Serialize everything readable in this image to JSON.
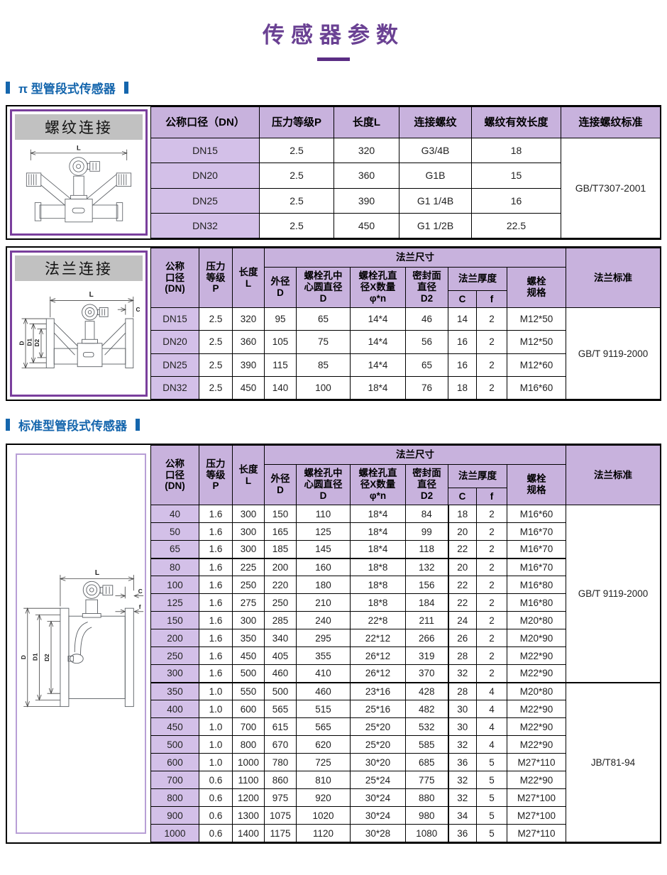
{
  "title": "传感器参数",
  "sections": {
    "pi_type": {
      "heading": "π 型管段式传感器",
      "threaded": {
        "panel_title": "螺纹连接",
        "headers": [
          "公称口径（DN）",
          "压力等级P",
          "长度L",
          "连接螺纹",
          "螺纹有效长度",
          "连接螺纹标准"
        ],
        "rows": [
          [
            "DN15",
            "2.5",
            "320",
            "G3/4B",
            "18"
          ],
          [
            "DN20",
            "2.5",
            "360",
            "G1B",
            "15"
          ],
          [
            "DN25",
            "2.5",
            "390",
            "G1 1/4B",
            "16"
          ],
          [
            "DN32",
            "2.5",
            "450",
            "G1 1/2B",
            "22.5"
          ]
        ],
        "standards": [
          {
            "label": "GB/T7307-2001",
            "span": 4
          }
        ]
      },
      "flanged": {
        "panel_title": "法兰连接",
        "rows": [
          [
            "DN15",
            "2.5",
            "320",
            "95",
            "65",
            "14*4",
            "46",
            "14",
            "2",
            "M12*50"
          ],
          [
            "DN20",
            "2.5",
            "360",
            "105",
            "75",
            "14*4",
            "56",
            "16",
            "2",
            "M12*50"
          ],
          [
            "DN25",
            "2.5",
            "390",
            "115",
            "85",
            "14*4",
            "65",
            "16",
            "2",
            "M12*60"
          ],
          [
            "DN32",
            "2.5",
            "450",
            "140",
            "100",
            "18*4",
            "76",
            "18",
            "2",
            "M16*60"
          ]
        ],
        "standards": [
          {
            "label": "GB/T 9119-2000",
            "span": 4
          }
        ]
      }
    },
    "standard_type": {
      "heading": "标准型管段式传感器",
      "table": {
        "rows": [
          [
            "40",
            "1.6",
            "300",
            "150",
            "110",
            "18*4",
            "84",
            "18",
            "2",
            "M16*60"
          ],
          [
            "50",
            "1.6",
            "300",
            "165",
            "125",
            "18*4",
            "99",
            "20",
            "2",
            "M16*70"
          ],
          [
            "65",
            "1.6",
            "300",
            "185",
            "145",
            "18*4",
            "118",
            "22",
            "2",
            "M16*70"
          ],
          [
            "80",
            "1.6",
            "225",
            "200",
            "160",
            "18*8",
            "132",
            "20",
            "2",
            "M16*70"
          ],
          [
            "100",
            "1.6",
            "250",
            "220",
            "180",
            "18*8",
            "156",
            "22",
            "2",
            "M16*80"
          ],
          [
            "125",
            "1.6",
            "275",
            "250",
            "210",
            "18*8",
            "184",
            "22",
            "2",
            "M16*80"
          ],
          [
            "150",
            "1.6",
            "300",
            "285",
            "240",
            "22*8",
            "211",
            "24",
            "2",
            "M20*80"
          ],
          [
            "200",
            "1.6",
            "350",
            "340",
            "295",
            "22*12",
            "266",
            "26",
            "2",
            "M20*90"
          ],
          [
            "250",
            "1.6",
            "450",
            "405",
            "355",
            "26*12",
            "319",
            "28",
            "2",
            "M22*90"
          ],
          [
            "300",
            "1.6",
            "500",
            "460",
            "410",
            "26*12",
            "370",
            "32",
            "2",
            "M22*90"
          ],
          [
            "350",
            "1.0",
            "550",
            "500",
            "460",
            "23*16",
            "428",
            "28",
            "4",
            "M20*80"
          ],
          [
            "400",
            "1.0",
            "600",
            "565",
            "515",
            "25*16",
            "482",
            "30",
            "4",
            "M22*90"
          ],
          [
            "450",
            "1.0",
            "700",
            "615",
            "565",
            "25*20",
            "532",
            "30",
            "4",
            "M22*90"
          ],
          [
            "500",
            "1.0",
            "800",
            "670",
            "620",
            "25*20",
            "585",
            "32",
            "4",
            "M22*90"
          ],
          [
            "600",
            "1.0",
            "1000",
            "780",
            "725",
            "30*20",
            "685",
            "36",
            "5",
            "M27*110"
          ],
          [
            "700",
            "0.6",
            "1100",
            "860",
            "810",
            "25*24",
            "775",
            "32",
            "5",
            "M22*90"
          ],
          [
            "800",
            "0.6",
            "1200",
            "975",
            "920",
            "30*24",
            "880",
            "32",
            "5",
            "M27*100"
          ],
          [
            "900",
            "0.6",
            "1300",
            "1075",
            "1020",
            "30*24",
            "980",
            "34",
            "5",
            "M27*100"
          ],
          [
            "1000",
            "0.6",
            "1400",
            "1175",
            "1120",
            "30*28",
            "1080",
            "36",
            "5",
            "M27*110"
          ]
        ],
        "standards": [
          {
            "label": "GB/T 9119-2000",
            "span": 10
          },
          {
            "label": "JB/T81-94",
            "span": 9
          }
        ]
      }
    }
  },
  "flange_header": {
    "dn": "公称\n口径\n(DN)",
    "pressure": "压力\n等级\nP",
    "length": "长度\nL",
    "flange_size": "法兰尺寸",
    "od": "外径\nD",
    "bolt_circle": "螺栓孔中\n心圆直径\nD",
    "bolt_holes": "螺栓孔直\n径X数量\nφ*n",
    "seal": "密封面\n直径\nD2",
    "thickness": "法兰厚度",
    "c": "C",
    "f": "f",
    "bolt_spec": "螺栓\n规格",
    "standard": "法兰标准"
  },
  "diagram_labels": {
    "L": "L",
    "C": "C",
    "f": "f",
    "D": "D",
    "D1": "D1",
    "D2": "D2"
  }
}
